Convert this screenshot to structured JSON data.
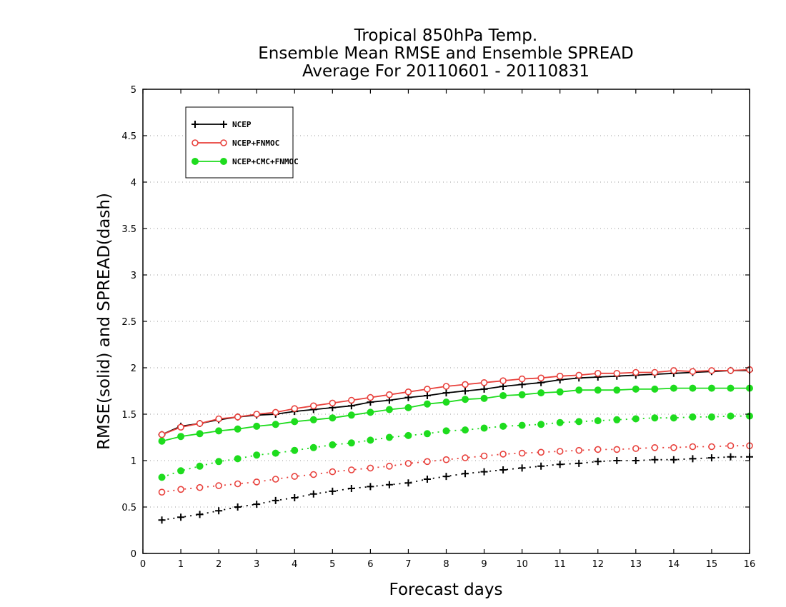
{
  "chart_data": {
    "type": "line",
    "title": [
      "Tropical 850hPa Temp.",
      "Ensemble Mean RMSE and Ensemble SPREAD",
      "Average For 20110601 - 20110831"
    ],
    "xlabel": "Forecast days",
    "ylabel": "RMSE(solid) and SPREAD(dash)",
    "xlim": [
      0,
      16
    ],
    "ylim": [
      0,
      5
    ],
    "xticks": [
      0,
      1,
      2,
      3,
      4,
      5,
      6,
      7,
      8,
      9,
      10,
      11,
      12,
      13,
      14,
      15,
      16
    ],
    "xtick_labels": [
      "0",
      "1",
      "2",
      "3",
      "4",
      "5",
      "6",
      "7",
      "8",
      "9",
      "10",
      "11",
      "12",
      "13",
      "14",
      "15",
      "16"
    ],
    "yticks": [
      0,
      0.5,
      1,
      1.5,
      2,
      2.5,
      3,
      3.5,
      4,
      4.5,
      5
    ],
    "ytick_labels": [
      "0",
      "0.5",
      "1",
      "1.5",
      "2",
      "2.5",
      "3",
      "3.5",
      "4",
      "4.5",
      "5"
    ],
    "grid": "horizontal dotted",
    "legend_position": "top-left",
    "x": [
      0.5,
      1,
      1.5,
      2,
      2.5,
      3,
      3.5,
      4,
      4.5,
      5,
      5.5,
      6,
      6.5,
      7,
      7.5,
      8,
      8.5,
      9,
      9.5,
      10,
      10.5,
      11,
      11.5,
      12,
      12.5,
      13,
      13.5,
      14,
      14.5,
      15,
      15.5,
      16
    ],
    "series": [
      {
        "name": "NCEP",
        "color": "#000000",
        "marker": "plus",
        "rmse": [
          1.28,
          1.37,
          1.4,
          1.44,
          1.47,
          1.49,
          1.5,
          1.53,
          1.55,
          1.57,
          1.59,
          1.63,
          1.65,
          1.68,
          1.7,
          1.73,
          1.75,
          1.77,
          1.8,
          1.82,
          1.84,
          1.87,
          1.89,
          1.9,
          1.91,
          1.92,
          1.93,
          1.94,
          1.95,
          1.96,
          1.97,
          1.97
        ],
        "spread": [
          0.36,
          0.39,
          0.42,
          0.46,
          0.5,
          0.53,
          0.57,
          0.6,
          0.64,
          0.67,
          0.7,
          0.72,
          0.74,
          0.76,
          0.8,
          0.83,
          0.86,
          0.88,
          0.9,
          0.92,
          0.94,
          0.96,
          0.97,
          0.99,
          1.0,
          1.0,
          1.01,
          1.01,
          1.02,
          1.03,
          1.04,
          1.04
        ]
      },
      {
        "name": "NCEP+FNMOC",
        "color": "#e8413c",
        "marker": "open-circle",
        "rmse": [
          1.28,
          1.36,
          1.4,
          1.45,
          1.47,
          1.5,
          1.52,
          1.56,
          1.59,
          1.62,
          1.65,
          1.68,
          1.71,
          1.74,
          1.77,
          1.8,
          1.82,
          1.84,
          1.86,
          1.88,
          1.89,
          1.91,
          1.92,
          1.94,
          1.94,
          1.95,
          1.95,
          1.97,
          1.96,
          1.97,
          1.97,
          1.98
        ],
        "spread": [
          0.66,
          0.69,
          0.71,
          0.73,
          0.75,
          0.77,
          0.8,
          0.83,
          0.85,
          0.88,
          0.9,
          0.92,
          0.94,
          0.97,
          0.99,
          1.01,
          1.03,
          1.05,
          1.07,
          1.08,
          1.09,
          1.1,
          1.11,
          1.12,
          1.12,
          1.13,
          1.14,
          1.14,
          1.15,
          1.15,
          1.16,
          1.16
        ]
      },
      {
        "name": "NCEP+CMC+FNMOC",
        "color": "#1edc1e",
        "marker": "filled-circle",
        "rmse": [
          1.21,
          1.26,
          1.29,
          1.32,
          1.34,
          1.37,
          1.39,
          1.42,
          1.44,
          1.46,
          1.49,
          1.52,
          1.55,
          1.57,
          1.61,
          1.63,
          1.66,
          1.67,
          1.7,
          1.71,
          1.73,
          1.74,
          1.76,
          1.76,
          1.76,
          1.77,
          1.77,
          1.78,
          1.78,
          1.78,
          1.78,
          1.78
        ],
        "spread": [
          0.82,
          0.89,
          0.94,
          0.99,
          1.02,
          1.06,
          1.08,
          1.11,
          1.14,
          1.17,
          1.19,
          1.22,
          1.25,
          1.27,
          1.29,
          1.32,
          1.33,
          1.35,
          1.37,
          1.38,
          1.39,
          1.41,
          1.42,
          1.43,
          1.44,
          1.45,
          1.46,
          1.46,
          1.47,
          1.47,
          1.48,
          1.48
        ]
      }
    ]
  }
}
